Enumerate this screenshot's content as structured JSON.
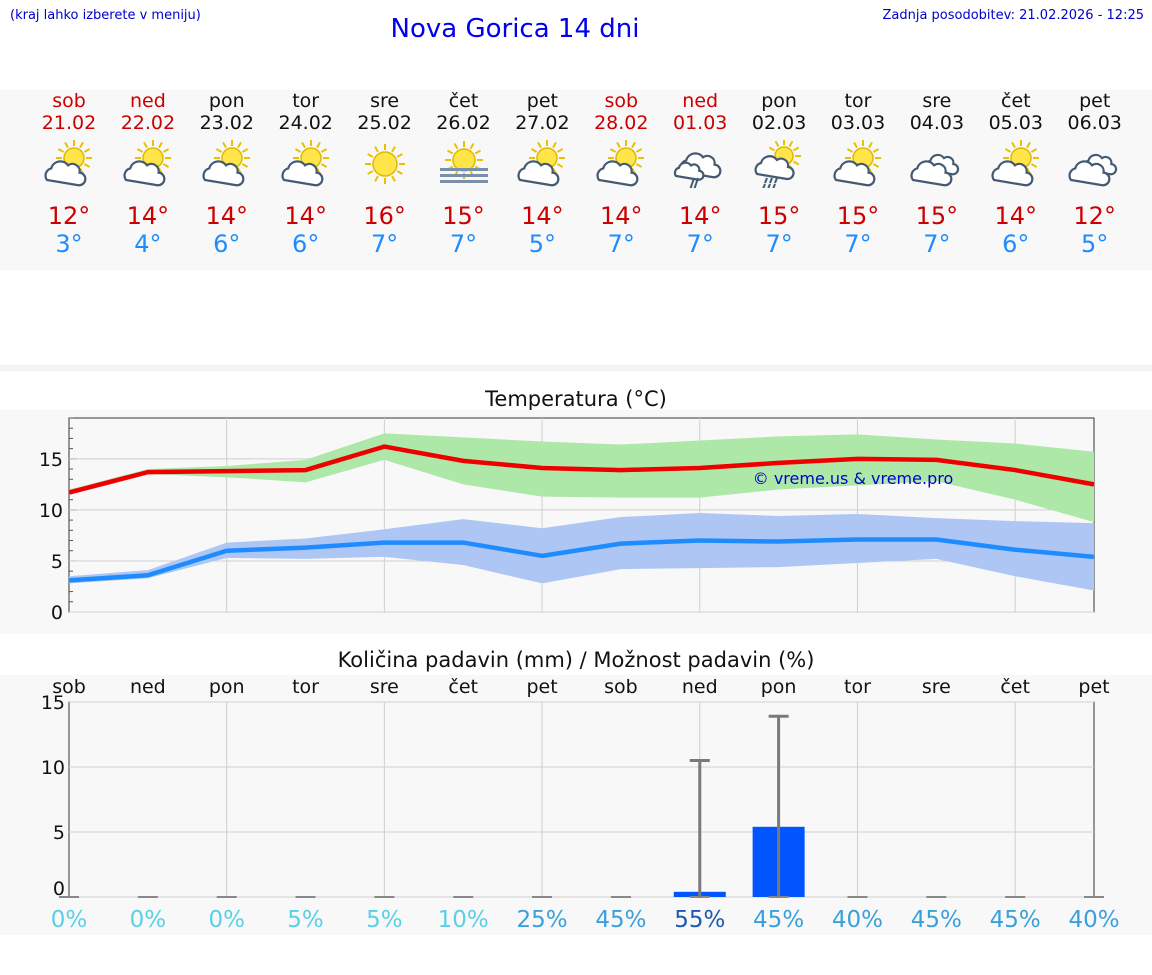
{
  "header": {
    "hint": "(kraj lahko izberete v meniju)",
    "title": "Nova Gorica 14 dni",
    "updated": "Zadnja posodobitev: 21.02.2026 - 12:25"
  },
  "colors": {
    "max_line": "#ee0000",
    "max_band": "#aee8a8",
    "min_line": "#1e8cff",
    "min_band": "#aec6f4",
    "weekend_text": "#cc0000",
    "precip_bar": "#0055ff",
    "prob_light": "#5ad0e8",
    "prob_mid": "#3aa0dc",
    "prob_dark": "#1a5ab4"
  },
  "days": [
    {
      "name": "sob",
      "date": "21.02",
      "weekend": true,
      "icon": "partly-cloudy-icon",
      "tmax": "12°",
      "tmin": "3°"
    },
    {
      "name": "ned",
      "date": "22.02",
      "weekend": true,
      "icon": "partly-cloudy-icon",
      "tmax": "14°",
      "tmin": "4°"
    },
    {
      "name": "pon",
      "date": "23.02",
      "weekend": false,
      "icon": "partly-cloudy-icon",
      "tmax": "14°",
      "tmin": "6°"
    },
    {
      "name": "tor",
      "date": "24.02",
      "weekend": false,
      "icon": "partly-cloudy-icon",
      "tmax": "14°",
      "tmin": "6°"
    },
    {
      "name": "sre",
      "date": "25.02",
      "weekend": false,
      "icon": "sun-icon",
      "tmax": "16°",
      "tmin": "7°"
    },
    {
      "name": "čet",
      "date": "26.02",
      "weekend": false,
      "icon": "sun-fog-icon",
      "tmax": "15°",
      "tmin": "7°"
    },
    {
      "name": "pet",
      "date": "27.02",
      "weekend": false,
      "icon": "partly-cloudy-icon",
      "tmax": "14°",
      "tmin": "5°"
    },
    {
      "name": "sob",
      "date": "28.02",
      "weekend": true,
      "icon": "partly-cloudy-icon",
      "tmax": "14°",
      "tmin": "7°"
    },
    {
      "name": "ned",
      "date": "01.03",
      "weekend": true,
      "icon": "cloud-rain-icon",
      "tmax": "14°",
      "tmin": "7°"
    },
    {
      "name": "pon",
      "date": "02.03",
      "weekend": false,
      "icon": "sun-cloud-rain-icon",
      "tmax": "15°",
      "tmin": "7°"
    },
    {
      "name": "tor",
      "date": "03.03",
      "weekend": false,
      "icon": "partly-cloudy-icon",
      "tmax": "15°",
      "tmin": "7°"
    },
    {
      "name": "sre",
      "date": "04.03",
      "weekend": false,
      "icon": "cloudy-icon",
      "tmax": "15°",
      "tmin": "7°"
    },
    {
      "name": "čet",
      "date": "05.03",
      "weekend": false,
      "icon": "partly-cloudy-icon",
      "tmax": "14°",
      "tmin": "6°"
    },
    {
      "name": "pet",
      "date": "06.03",
      "weekend": false,
      "icon": "cloudy-icon",
      "tmax": "12°",
      "tmin": "5°"
    }
  ],
  "chart_data": [
    {
      "type": "line",
      "title": "Temperatura (°C)",
      "x": [
        "21.02",
        "22.02",
        "23.02",
        "24.02",
        "25.02",
        "26.02",
        "27.02",
        "28.02",
        "01.03",
        "02.03",
        "03.03",
        "04.03",
        "05.03",
        "06.03"
      ],
      "ylim": [
        0,
        19
      ],
      "yticks": [
        0,
        5,
        10,
        15
      ],
      "grid": true,
      "watermark": "© vreme.us & vreme.pro",
      "series": [
        {
          "role": "max",
          "values": [
            11.7,
            13.7,
            13.8,
            13.9,
            16.2,
            14.8,
            14.1,
            13.9,
            14.1,
            14.6,
            15.0,
            14.9,
            13.9,
            12.5
          ],
          "band_low": [
            11.5,
            13.5,
            13.2,
            12.7,
            14.9,
            12.5,
            11.3,
            11.2,
            11.2,
            12.0,
            12.4,
            12.8,
            11.0,
            8.8
          ],
          "band_high": [
            12.0,
            14.0,
            14.3,
            14.9,
            17.5,
            17.1,
            16.7,
            16.4,
            16.8,
            17.2,
            17.4,
            16.9,
            16.5,
            15.7
          ]
        },
        {
          "role": "min",
          "values": [
            3.1,
            3.6,
            6.0,
            6.3,
            6.8,
            6.8,
            5.5,
            6.7,
            7.0,
            6.9,
            7.1,
            7.1,
            6.1,
            5.4
          ],
          "band_low": [
            2.8,
            3.3,
            5.3,
            5.2,
            5.4,
            4.6,
            2.8,
            4.2,
            4.3,
            4.4,
            4.8,
            5.2,
            3.5,
            2.1
          ],
          "band_high": [
            3.5,
            4.1,
            6.8,
            7.2,
            8.1,
            9.1,
            8.2,
            9.3,
            9.7,
            9.4,
            9.6,
            9.2,
            8.9,
            8.7
          ]
        }
      ]
    },
    {
      "type": "bar",
      "title": "Količina padavin (mm) / Možnost padavin (%)",
      "categories": [
        "sob",
        "ned",
        "pon",
        "tor",
        "sre",
        "čet",
        "pet",
        "sob",
        "ned",
        "pon",
        "tor",
        "sre",
        "čet",
        "pet"
      ],
      "ylim": [
        0,
        15
      ],
      "yticks": [
        0,
        5,
        10,
        15
      ],
      "grid": true,
      "values": [
        0,
        0,
        0,
        0,
        0,
        0,
        0,
        0,
        0.4,
        5.4,
        0,
        0,
        0,
        0
      ],
      "error_high": [
        0,
        0,
        0,
        0,
        0,
        0,
        0,
        0,
        10.5,
        13.9,
        0,
        0,
        0,
        0
      ],
      "probability": [
        "0%",
        "0%",
        "0%",
        "5%",
        "5%",
        "10%",
        "25%",
        "45%",
        "55%",
        "45%",
        "40%",
        "45%",
        "45%",
        "40%"
      ]
    }
  ]
}
